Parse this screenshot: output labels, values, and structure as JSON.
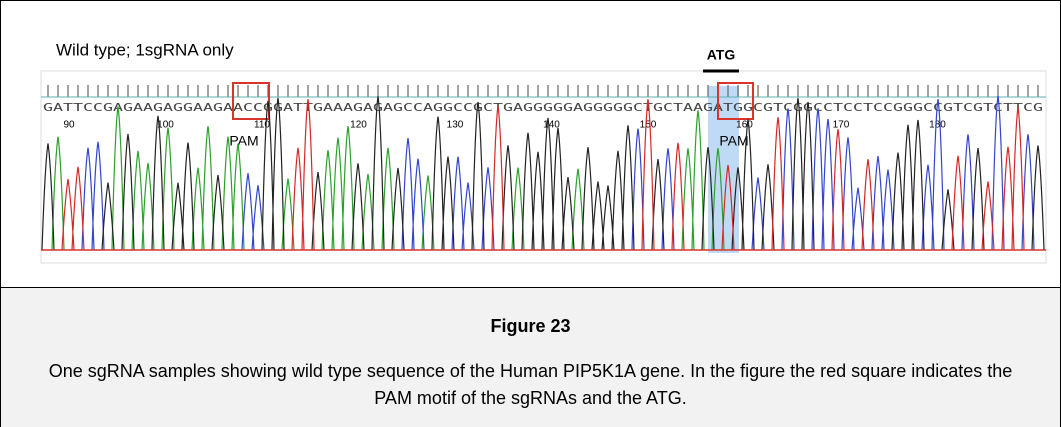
{
  "figure": {
    "panel_title": "Wild type; 1sgRNA only",
    "atg_label": "ATG",
    "sequence": "GATTCCGAGAAGAGGAAGAACCGGATTGAAAGAGAGCCAGGCCGCTGAGGGGGAGGGGGCTGCTAAGATGGCGTCGGCCTCCTCCGGGCCGTCGTCTTCG",
    "positions": [
      90,
      100,
      110,
      120,
      130,
      140,
      150,
      160,
      170,
      180
    ],
    "pam_labels": [
      "PAM",
      "PAM"
    ]
  },
  "caption": {
    "label": "Figure 23",
    "text": "One sgRNA samples showing wild type sequence of the Human PIP5K1A gene. In the figure the red square indicates the PAM motif of the sgRNAs and the ATG."
  }
}
